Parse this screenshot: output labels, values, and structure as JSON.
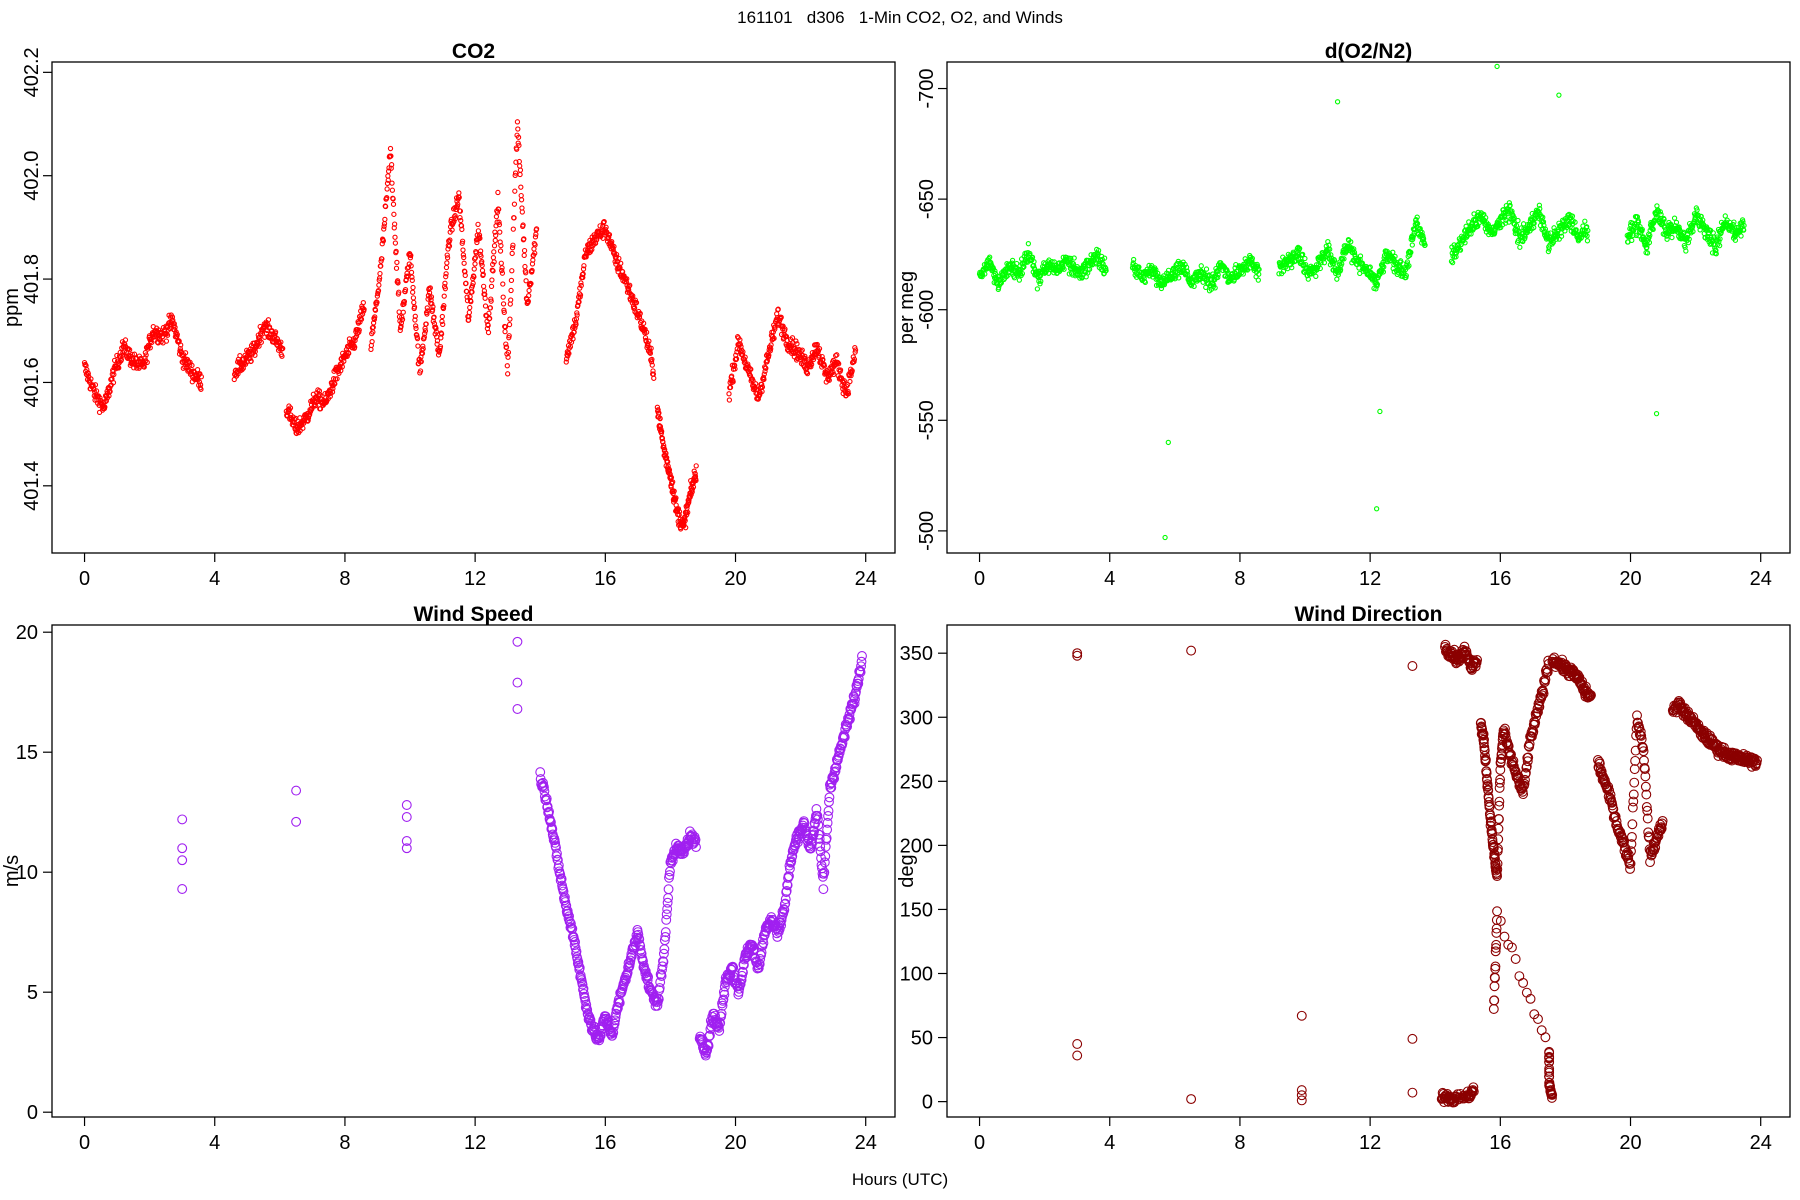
{
  "figure": {
    "title": "161101   d306   1-Min CO2, O2, and Winds",
    "xlabel": "Hours (UTC)"
  },
  "chart_data": [
    {
      "type": "scatter",
      "title": "CO2",
      "xlabel": "",
      "ylabel": "ppm",
      "color": "#ff0000",
      "marker": "small-open-circle",
      "xlim": [
        -1,
        24.9
      ],
      "ylim": [
        401.27,
        402.22
      ],
      "xticks": [
        0,
        4,
        8,
        12,
        16,
        20,
        24
      ],
      "yticks": [
        401.4,
        401.6,
        401.8,
        402.0,
        402.2
      ],
      "segments": [
        {
          "x": [
            0.0,
            0.3,
            0.6,
            0.9,
            1.2,
            1.5,
            1.8,
            2.1,
            2.4,
            2.7,
            3.0,
            3.3,
            3.6
          ],
          "y": [
            401.63,
            401.58,
            401.55,
            401.62,
            401.67,
            401.64,
            401.63,
            401.7,
            401.69,
            401.72,
            401.65,
            401.62,
            401.6
          ]
        },
        {
          "x": [
            4.6,
            4.9,
            5.2,
            5.5,
            5.8,
            6.1
          ],
          "y": [
            401.62,
            401.64,
            401.66,
            401.71,
            401.69,
            401.66
          ]
        },
        {
          "x": [
            6.2,
            6.5,
            6.8,
            7.1,
            7.4,
            7.7,
            8.0,
            8.3,
            8.6
          ],
          "y": [
            401.55,
            401.51,
            401.53,
            401.57,
            401.56,
            401.61,
            401.65,
            401.68,
            401.75
          ]
        },
        {
          "x": [
            8.8,
            9.1,
            9.4,
            9.7,
            10.0,
            10.3,
            10.6,
            10.9,
            11.2,
            11.5,
            11.8,
            12.1,
            12.4,
            12.7,
            13.0,
            13.3,
            13.6,
            13.9
          ],
          "y": [
            401.67,
            401.82,
            402.05,
            401.7,
            401.85,
            401.62,
            401.78,
            401.65,
            401.88,
            401.96,
            401.72,
            401.9,
            401.7,
            401.95,
            401.62,
            402.1,
            401.75,
            401.9
          ]
        },
        {
          "x": [
            14.8,
            15.1,
            15.4,
            15.7,
            16.0,
            16.3,
            16.6,
            16.9,
            17.2,
            17.5
          ],
          "y": [
            401.65,
            401.72,
            401.85,
            401.88,
            401.9,
            401.84,
            401.8,
            401.75,
            401.7,
            401.62
          ]
        },
        {
          "x": [
            17.6,
            17.8,
            18.0,
            18.2,
            18.4,
            18.6,
            18.8
          ],
          "y": [
            401.55,
            401.47,
            401.42,
            401.35,
            401.32,
            401.38,
            401.43
          ]
        },
        {
          "x": [
            19.8,
            20.1,
            20.4,
            20.7,
            21.0,
            21.3,
            21.6,
            21.9,
            22.2,
            22.5,
            22.8,
            23.1,
            23.4,
            23.7
          ],
          "y": [
            401.58,
            401.68,
            401.62,
            401.57,
            401.65,
            401.73,
            401.68,
            401.66,
            401.63,
            401.67,
            401.61,
            401.64,
            401.58,
            401.66
          ]
        }
      ]
    },
    {
      "type": "scatter",
      "title": "d(O2/N2)",
      "xlabel": "",
      "ylabel": "per meg",
      "color": "#00ff00",
      "marker": "small-open-circle",
      "y_reversed": true,
      "xlim": [
        -1,
        24.9
      ],
      "ylim": [
        -490,
        -712
      ],
      "xticks": [
        0,
        4,
        8,
        12,
        16,
        20,
        24
      ],
      "yticks": [
        -500,
        -550,
        -600,
        -650,
        -700
      ],
      "segments": [
        {
          "x": [
            0.0,
            0.3,
            0.6,
            0.9,
            1.2,
            1.5,
            1.8,
            2.1,
            2.4,
            2.7,
            3.0,
            3.3,
            3.6,
            3.9
          ],
          "y": [
            -615,
            -622,
            -612,
            -620,
            -617,
            -625,
            -614,
            -621,
            -618,
            -623,
            -616,
            -619,
            -624,
            -618
          ]
        },
        {
          "x": [
            4.7,
            5.0,
            5.3,
            5.6,
            5.9,
            6.2,
            6.5,
            6.8,
            7.1,
            7.4,
            7.7,
            8.0,
            8.3,
            8.6
          ],
          "y": [
            -620,
            -615,
            -618,
            -612,
            -616,
            -619,
            -613,
            -617,
            -611,
            -620,
            -614,
            -618,
            -622,
            -616
          ]
        },
        {
          "x": [
            9.2,
            9.5,
            9.8,
            10.1,
            10.4,
            10.7,
            11.0,
            11.3,
            11.6,
            11.9,
            12.2,
            12.5,
            12.8,
            13.1,
            13.4,
            13.7
          ],
          "y": [
            -618,
            -622,
            -625,
            -617,
            -620,
            -628,
            -615,
            -630,
            -622,
            -618,
            -612,
            -625,
            -620,
            -616,
            -640,
            -628
          ]
        },
        {
          "x": [
            14.5,
            14.8,
            15.1,
            15.4,
            15.7,
            16.0,
            16.3,
            16.6,
            16.9,
            17.2,
            17.5,
            17.8,
            18.1,
            18.4,
            18.7
          ],
          "y": [
            -625,
            -630,
            -638,
            -642,
            -635,
            -640,
            -645,
            -632,
            -638,
            -644,
            -630,
            -636,
            -641,
            -633,
            -637
          ]
        },
        {
          "x": [
            19.9,
            20.2,
            20.5,
            20.8,
            21.1,
            21.4,
            21.7,
            22.0,
            22.3,
            22.6,
            22.9,
            23.2,
            23.5
          ],
          "y": [
            -632,
            -640,
            -628,
            -645,
            -635,
            -638,
            -630,
            -642,
            -636,
            -629,
            -640,
            -634,
            -638
          ]
        }
      ],
      "outliers": {
        "x": [
          5.7,
          5.8,
          12.2,
          12.3,
          20.8,
          15.9,
          11.0,
          17.8
        ],
        "y": [
          -497,
          -540,
          -510,
          -554,
          -553,
          -710,
          -694,
          -697
        ]
      }
    },
    {
      "type": "scatter",
      "title": "Wind Speed",
      "xlabel": "",
      "ylabel": "m/s",
      "color": "#a020f0",
      "marker": "open-circle",
      "xlim": [
        -1,
        24.9
      ],
      "ylim": [
        -0.2,
        20.3
      ],
      "xticks": [
        0,
        4,
        8,
        12,
        16,
        20,
        24
      ],
      "yticks": [
        0,
        5,
        10,
        15,
        20
      ],
      "segments": [
        {
          "x": [
            3.0,
            3.0,
            3.0,
            3.0
          ],
          "y": [
            12.2,
            11.0,
            10.5,
            9.3
          ]
        },
        {
          "x": [
            6.5,
            6.5
          ],
          "y": [
            13.4,
            12.1
          ]
        },
        {
          "x": [
            9.9,
            9.9,
            9.9,
            9.9
          ],
          "y": [
            12.8,
            12.3,
            11.3,
            11.0
          ]
        },
        {
          "x": [
            13.3,
            13.3,
            13.3
          ],
          "y": [
            19.6,
            17.9,
            16.8
          ]
        },
        {
          "x": [
            14.0,
            14.2,
            14.4,
            14.6,
            14.8,
            15.0,
            15.2,
            15.4,
            15.6,
            15.8,
            16.0,
            16.2,
            16.4,
            16.6,
            16.8,
            17.0,
            17.2,
            17.4,
            17.6,
            17.8,
            18.0,
            18.2,
            18.4,
            18.6,
            18.8
          ],
          "y": [
            14.0,
            13.0,
            11.5,
            10.0,
            8.5,
            7.5,
            6.0,
            4.5,
            3.5,
            3.0,
            4.0,
            3.2,
            4.5,
            5.5,
            6.5,
            7.5,
            6.0,
            5.0,
            4.5,
            6.5,
            10.5,
            11.0,
            10.8,
            11.5,
            11.2
          ]
        },
        {
          "x": [
            18.9,
            19.1,
            19.3,
            19.5,
            19.7,
            19.9,
            20.1,
            20.3,
            20.5,
            20.7,
            20.9,
            21.1,
            21.3,
            21.5,
            21.7,
            21.9,
            22.1,
            22.3,
            22.5,
            22.7,
            22.9,
            23.1,
            23.3,
            23.5,
            23.7,
            23.9
          ],
          "y": [
            3.0,
            2.5,
            4.0,
            3.5,
            5.5,
            6.0,
            5.0,
            6.5,
            7.0,
            6.0,
            7.5,
            8.0,
            7.5,
            8.5,
            10.5,
            11.5,
            12.0,
            11.0,
            12.5,
            9.5,
            13.5,
            14.5,
            15.5,
            16.5,
            17.5,
            19.0
          ]
        }
      ]
    },
    {
      "type": "scatter",
      "title": "Wind Direction",
      "xlabel": "",
      "ylabel": "deg",
      "color": "#8b0000",
      "marker": "open-circle",
      "xlim": [
        -1,
        24.9
      ],
      "ylim": [
        -12,
        372
      ],
      "xticks": [
        0,
        4,
        8,
        12,
        16,
        20,
        24
      ],
      "yticks": [
        0,
        50,
        100,
        150,
        200,
        250,
        300,
        350
      ],
      "segments": [
        {
          "x": [
            3.0,
            3.0,
            3.0,
            3.0
          ],
          "y": [
            350,
            348,
            45,
            36
          ]
        },
        {
          "x": [
            6.5,
            6.5
          ],
          "y": [
            352,
            2
          ]
        },
        {
          "x": [
            9.9,
            9.9,
            9.9,
            9.9
          ],
          "y": [
            67,
            9,
            5,
            1
          ]
        },
        {
          "x": [
            13.3,
            13.3,
            13.3
          ],
          "y": [
            340,
            49,
            7
          ]
        },
        {
          "x": [
            14.3,
            14.5,
            14.7,
            14.9,
            15.1,
            15.3
          ],
          "y": [
            355,
            350,
            345,
            352,
            340,
            345
          ]
        },
        {
          "x": [
            14.2,
            14.4,
            14.6,
            15.0,
            15.2
          ],
          "y": [
            5,
            3,
            2,
            4,
            10
          ]
        },
        {
          "x": [
            15.4,
            15.5,
            15.6,
            15.7,
            15.8,
            15.9,
            16.0,
            16.1,
            16.3,
            16.5,
            16.7,
            16.9,
            17.1,
            17.3,
            17.5
          ],
          "y": [
            295,
            280,
            250,
            220,
            195,
            175,
            260,
            290,
            270,
            255,
            240,
            280,
            300,
            320,
            345
          ]
        },
        {
          "x": [
            17.6,
            17.8,
            18.0,
            18.2,
            18.4,
            18.6,
            18.8
          ],
          "y": [
            345,
            342,
            338,
            335,
            330,
            320,
            315
          ]
        },
        {
          "x": [
            19.0,
            19.2,
            19.4,
            19.6,
            19.8,
            20.0,
            20.2,
            20.4,
            20.6,
            20.8,
            21.0
          ],
          "y": [
            265,
            250,
            235,
            215,
            200,
            185,
            300,
            275,
            190,
            205,
            220
          ]
        },
        {
          "x": [
            21.3,
            21.5,
            21.7,
            21.9,
            22.1,
            22.3,
            22.5,
            22.7,
            22.9,
            23.1,
            23.3,
            23.5,
            23.7,
            23.9
          ],
          "y": [
            305,
            310,
            302,
            298,
            290,
            285,
            280,
            275,
            272,
            270,
            268,
            267,
            266,
            265
          ]
        },
        {
          "x": [
            15.8,
            15.9,
            17.5,
            17.5,
            17.6
          ],
          "y": [
            73,
            146,
            40,
            15,
            2
          ]
        }
      ]
    }
  ]
}
